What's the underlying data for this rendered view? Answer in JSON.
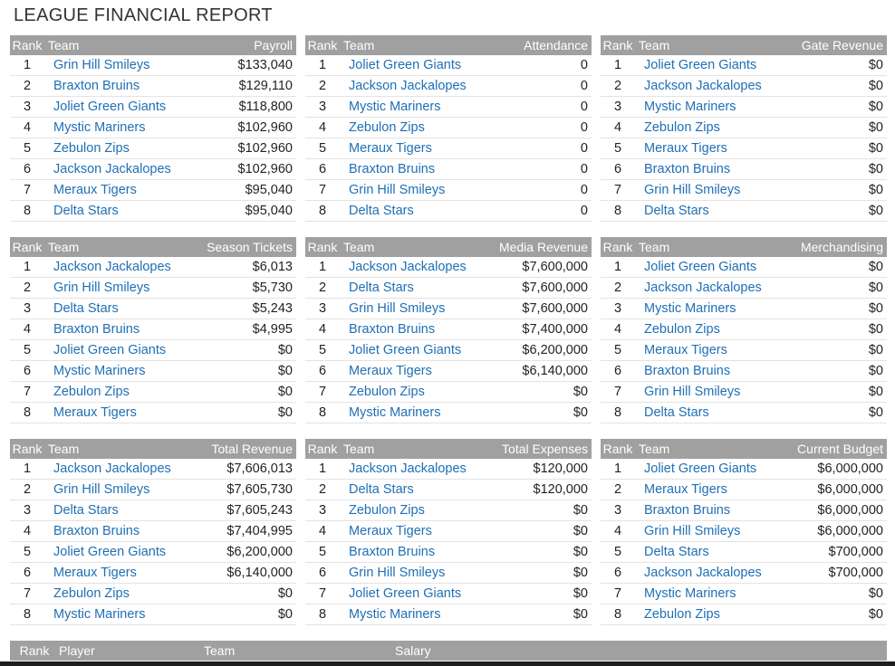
{
  "page": {
    "title": "LEAGUE FINANCIAL REPORT"
  },
  "colors": {
    "header_bg": "#a0a0a0",
    "link": "#1f6fb5"
  },
  "panels": [
    {
      "rank_label": "Rank",
      "team_label": "Team",
      "value_label": "Payroll",
      "rows": [
        {
          "rank": "1",
          "team": "Grin Hill Smileys",
          "value": "$133,040"
        },
        {
          "rank": "2",
          "team": "Braxton Bruins",
          "value": "$129,110"
        },
        {
          "rank": "3",
          "team": "Joliet Green Giants",
          "value": "$118,800"
        },
        {
          "rank": "4",
          "team": "Mystic Mariners",
          "value": "$102,960"
        },
        {
          "rank": "5",
          "team": "Zebulon Zips",
          "value": "$102,960"
        },
        {
          "rank": "6",
          "team": "Jackson Jackalopes",
          "value": "$102,960"
        },
        {
          "rank": "7",
          "team": "Meraux Tigers",
          "value": "$95,040"
        },
        {
          "rank": "8",
          "team": "Delta Stars",
          "value": "$95,040"
        }
      ]
    },
    {
      "rank_label": "Rank",
      "team_label": "Team",
      "value_label": "Attendance",
      "rows": [
        {
          "rank": "1",
          "team": "Joliet Green Giants",
          "value": "0"
        },
        {
          "rank": "2",
          "team": "Jackson Jackalopes",
          "value": "0"
        },
        {
          "rank": "3",
          "team": "Mystic Mariners",
          "value": "0"
        },
        {
          "rank": "4",
          "team": "Zebulon Zips",
          "value": "0"
        },
        {
          "rank": "5",
          "team": "Meraux Tigers",
          "value": "0"
        },
        {
          "rank": "6",
          "team": "Braxton Bruins",
          "value": "0"
        },
        {
          "rank": "7",
          "team": "Grin Hill Smileys",
          "value": "0"
        },
        {
          "rank": "8",
          "team": "Delta Stars",
          "value": "0"
        }
      ]
    },
    {
      "rank_label": "Rank",
      "team_label": "Team",
      "value_label": "Gate Revenue",
      "rows": [
        {
          "rank": "1",
          "team": "Joliet Green Giants",
          "value": "$0"
        },
        {
          "rank": "2",
          "team": "Jackson Jackalopes",
          "value": "$0"
        },
        {
          "rank": "3",
          "team": "Mystic Mariners",
          "value": "$0"
        },
        {
          "rank": "4",
          "team": "Zebulon Zips",
          "value": "$0"
        },
        {
          "rank": "5",
          "team": "Meraux Tigers",
          "value": "$0"
        },
        {
          "rank": "6",
          "team": "Braxton Bruins",
          "value": "$0"
        },
        {
          "rank": "7",
          "team": "Grin Hill Smileys",
          "value": "$0"
        },
        {
          "rank": "8",
          "team": "Delta Stars",
          "value": "$0"
        }
      ]
    },
    {
      "rank_label": "Rank",
      "team_label": "Team",
      "value_label": "Season Tickets",
      "rows": [
        {
          "rank": "1",
          "team": "Jackson Jackalopes",
          "value": "$6,013"
        },
        {
          "rank": "2",
          "team": "Grin Hill Smileys",
          "value": "$5,730"
        },
        {
          "rank": "3",
          "team": "Delta Stars",
          "value": "$5,243"
        },
        {
          "rank": "4",
          "team": "Braxton Bruins",
          "value": "$4,995"
        },
        {
          "rank": "5",
          "team": "Joliet Green Giants",
          "value": "$0"
        },
        {
          "rank": "6",
          "team": "Mystic Mariners",
          "value": "$0"
        },
        {
          "rank": "7",
          "team": "Zebulon Zips",
          "value": "$0"
        },
        {
          "rank": "8",
          "team": "Meraux Tigers",
          "value": "$0"
        }
      ]
    },
    {
      "rank_label": "Rank",
      "team_label": "Team",
      "value_label": "Media Revenue",
      "rows": [
        {
          "rank": "1",
          "team": "Jackson Jackalopes",
          "value": "$7,600,000"
        },
        {
          "rank": "2",
          "team": "Delta Stars",
          "value": "$7,600,000"
        },
        {
          "rank": "3",
          "team": "Grin Hill Smileys",
          "value": "$7,600,000"
        },
        {
          "rank": "4",
          "team": "Braxton Bruins",
          "value": "$7,400,000"
        },
        {
          "rank": "5",
          "team": "Joliet Green Giants",
          "value": "$6,200,000"
        },
        {
          "rank": "6",
          "team": "Meraux Tigers",
          "value": "$6,140,000"
        },
        {
          "rank": "7",
          "team": "Zebulon Zips",
          "value": "$0"
        },
        {
          "rank": "8",
          "team": "Mystic Mariners",
          "value": "$0"
        }
      ]
    },
    {
      "rank_label": "Rank",
      "team_label": "Team",
      "value_label": "Merchandising",
      "rows": [
        {
          "rank": "1",
          "team": "Joliet Green Giants",
          "value": "$0"
        },
        {
          "rank": "2",
          "team": "Jackson Jackalopes",
          "value": "$0"
        },
        {
          "rank": "3",
          "team": "Mystic Mariners",
          "value": "$0"
        },
        {
          "rank": "4",
          "team": "Zebulon Zips",
          "value": "$0"
        },
        {
          "rank": "5",
          "team": "Meraux Tigers",
          "value": "$0"
        },
        {
          "rank": "6",
          "team": "Braxton Bruins",
          "value": "$0"
        },
        {
          "rank": "7",
          "team": "Grin Hill Smileys",
          "value": "$0"
        },
        {
          "rank": "8",
          "team": "Delta Stars",
          "value": "$0"
        }
      ]
    },
    {
      "rank_label": "Rank",
      "team_label": "Team",
      "value_label": "Total Revenue",
      "rows": [
        {
          "rank": "1",
          "team": "Jackson Jackalopes",
          "value": "$7,606,013"
        },
        {
          "rank": "2",
          "team": "Grin Hill Smileys",
          "value": "$7,605,730"
        },
        {
          "rank": "3",
          "team": "Delta Stars",
          "value": "$7,605,243"
        },
        {
          "rank": "4",
          "team": "Braxton Bruins",
          "value": "$7,404,995"
        },
        {
          "rank": "5",
          "team": "Joliet Green Giants",
          "value": "$6,200,000"
        },
        {
          "rank": "6",
          "team": "Meraux Tigers",
          "value": "$6,140,000"
        },
        {
          "rank": "7",
          "team": "Zebulon Zips",
          "value": "$0"
        },
        {
          "rank": "8",
          "team": "Mystic Mariners",
          "value": "$0"
        }
      ]
    },
    {
      "rank_label": "Rank",
      "team_label": "Team",
      "value_label": "Total Expenses",
      "rows": [
        {
          "rank": "1",
          "team": "Jackson Jackalopes",
          "value": "$120,000"
        },
        {
          "rank": "2",
          "team": "Delta Stars",
          "value": "$120,000"
        },
        {
          "rank": "3",
          "team": "Zebulon Zips",
          "value": "$0"
        },
        {
          "rank": "4",
          "team": "Meraux Tigers",
          "value": "$0"
        },
        {
          "rank": "5",
          "team": "Braxton Bruins",
          "value": "$0"
        },
        {
          "rank": "6",
          "team": "Grin Hill Smileys",
          "value": "$0"
        },
        {
          "rank": "7",
          "team": "Joliet Green Giants",
          "value": "$0"
        },
        {
          "rank": "8",
          "team": "Mystic Mariners",
          "value": "$0"
        }
      ]
    },
    {
      "rank_label": "Rank",
      "team_label": "Team",
      "value_label": "Current Budget",
      "rows": [
        {
          "rank": "1",
          "team": "Joliet Green Giants",
          "value": "$6,000,000"
        },
        {
          "rank": "2",
          "team": "Meraux Tigers",
          "value": "$6,000,000"
        },
        {
          "rank": "3",
          "team": "Braxton Bruins",
          "value": "$6,000,000"
        },
        {
          "rank": "4",
          "team": "Grin Hill Smileys",
          "value": "$6,000,000"
        },
        {
          "rank": "5",
          "team": "Delta Stars",
          "value": "$700,000"
        },
        {
          "rank": "6",
          "team": "Jackson Jackalopes",
          "value": "$700,000"
        },
        {
          "rank": "7",
          "team": "Mystic Mariners",
          "value": "$0"
        },
        {
          "rank": "8",
          "team": "Zebulon Zips",
          "value": "$0"
        }
      ]
    }
  ],
  "player_table": {
    "rank_label": "Rank",
    "player_label": "Player",
    "team_label": "Team",
    "salary_label": "Salary"
  }
}
